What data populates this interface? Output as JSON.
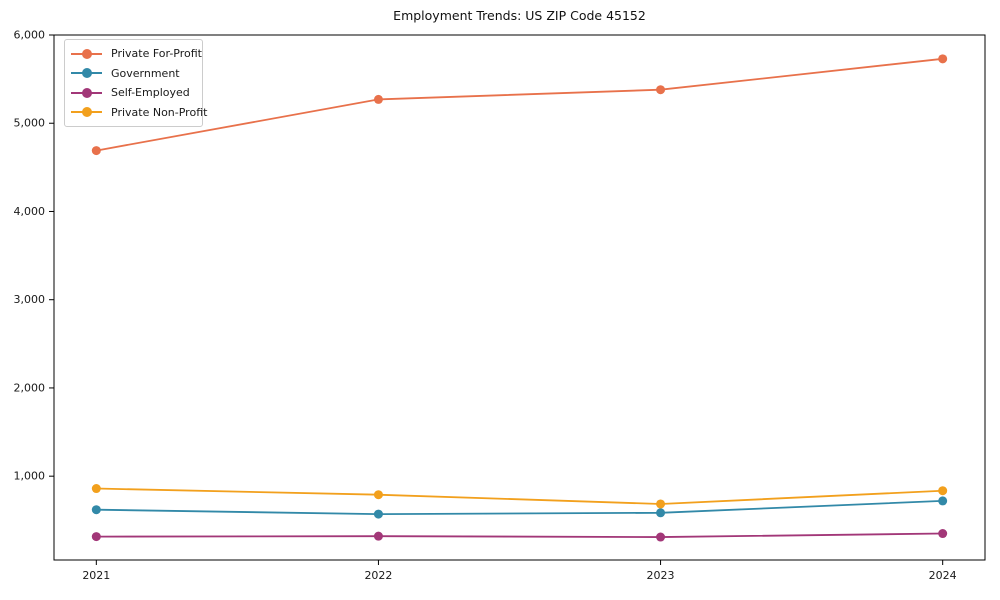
{
  "chart_data": {
    "type": "line",
    "title": "Employment Trends: US ZIP Code 45152",
    "x": [
      2021,
      2022,
      2023,
      2024
    ],
    "x_tick_labels": [
      "2021",
      "2022",
      "2023",
      "2024"
    ],
    "series": [
      {
        "name": "Private For-Profit",
        "color": "#E8714B",
        "values": [
          4690,
          5270,
          5380,
          5730
        ]
      },
      {
        "name": "Government",
        "color": "#3289A8",
        "values": [
          620,
          570,
          585,
          720
        ]
      },
      {
        "name": "Self-Employed",
        "color": "#A23778",
        "values": [
          315,
          320,
          310,
          350
        ]
      },
      {
        "name": "Private Non-Profit",
        "color": "#F2A01D",
        "values": [
          860,
          790,
          685,
          835
        ]
      }
    ],
    "xlim": [
      2020.85,
      2024.15
    ],
    "ylim": [
      50,
      6000
    ],
    "yticks": [
      1000,
      2000,
      3000,
      4000,
      5000,
      6000
    ],
    "ytick_labels": [
      "1,000",
      "2,000",
      "3,000",
      "4,000",
      "5,000",
      "6,000"
    ],
    "xlabel": "",
    "ylabel": "",
    "grid": false,
    "legend_position": "upper-left",
    "marker": "circle",
    "axis_color": "#000000",
    "tick_label_color": "#1a1a1a",
    "background": "#ffffff"
  }
}
